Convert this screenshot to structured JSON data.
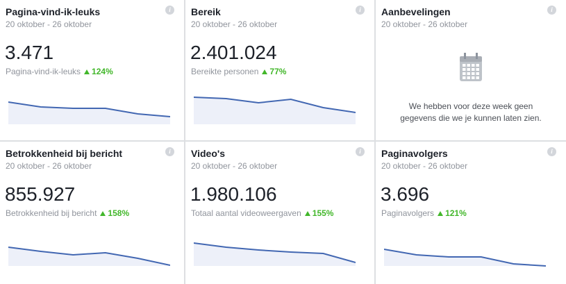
{
  "cards": [
    {
      "title": "Pagina-vind-ik-leuks",
      "date": "20 oktober - 26 oktober",
      "value": "3.471",
      "metric": "Pagina-vind-ik-leuks",
      "change": "124%",
      "trend": [
        32,
        25,
        23,
        23,
        15,
        11
      ]
    },
    {
      "title": "Bereik",
      "date": "20 oktober - 26 oktober",
      "value": "2.401.024",
      "metric": "Bereikte personen",
      "change": "77%",
      "trend": [
        39,
        37,
        31,
        36,
        24,
        17
      ]
    },
    {
      "title": "Aanbevelingen",
      "date": "20 oktober - 26 oktober",
      "message": [
        "We hebben voor deze week geen",
        "gegevens die we je kunnen laten zien."
      ]
    },
    {
      "title": "Betrokkenheid bij bericht",
      "date": "20 oktober - 26 oktober",
      "value": "855.927",
      "metric": "Betrokkenheid bij bericht",
      "change": "158%",
      "trend": [
        27,
        21,
        16,
        19,
        11,
        1
      ]
    },
    {
      "title": "Video's",
      "date": "20 oktober - 26 oktober",
      "value": "1.980.106",
      "metric": "Totaal aantal videoweergaven",
      "change": "155%",
      "trend": [
        33,
        27,
        23,
        20,
        18,
        5
      ]
    },
    {
      "title": "Paginavolgers",
      "date": "20 oktober - 26 oktober",
      "value": "3.696",
      "metric": "Paginavolgers",
      "change": "121%",
      "trend": [
        24,
        16,
        13,
        13,
        3,
        0
      ]
    }
  ]
}
